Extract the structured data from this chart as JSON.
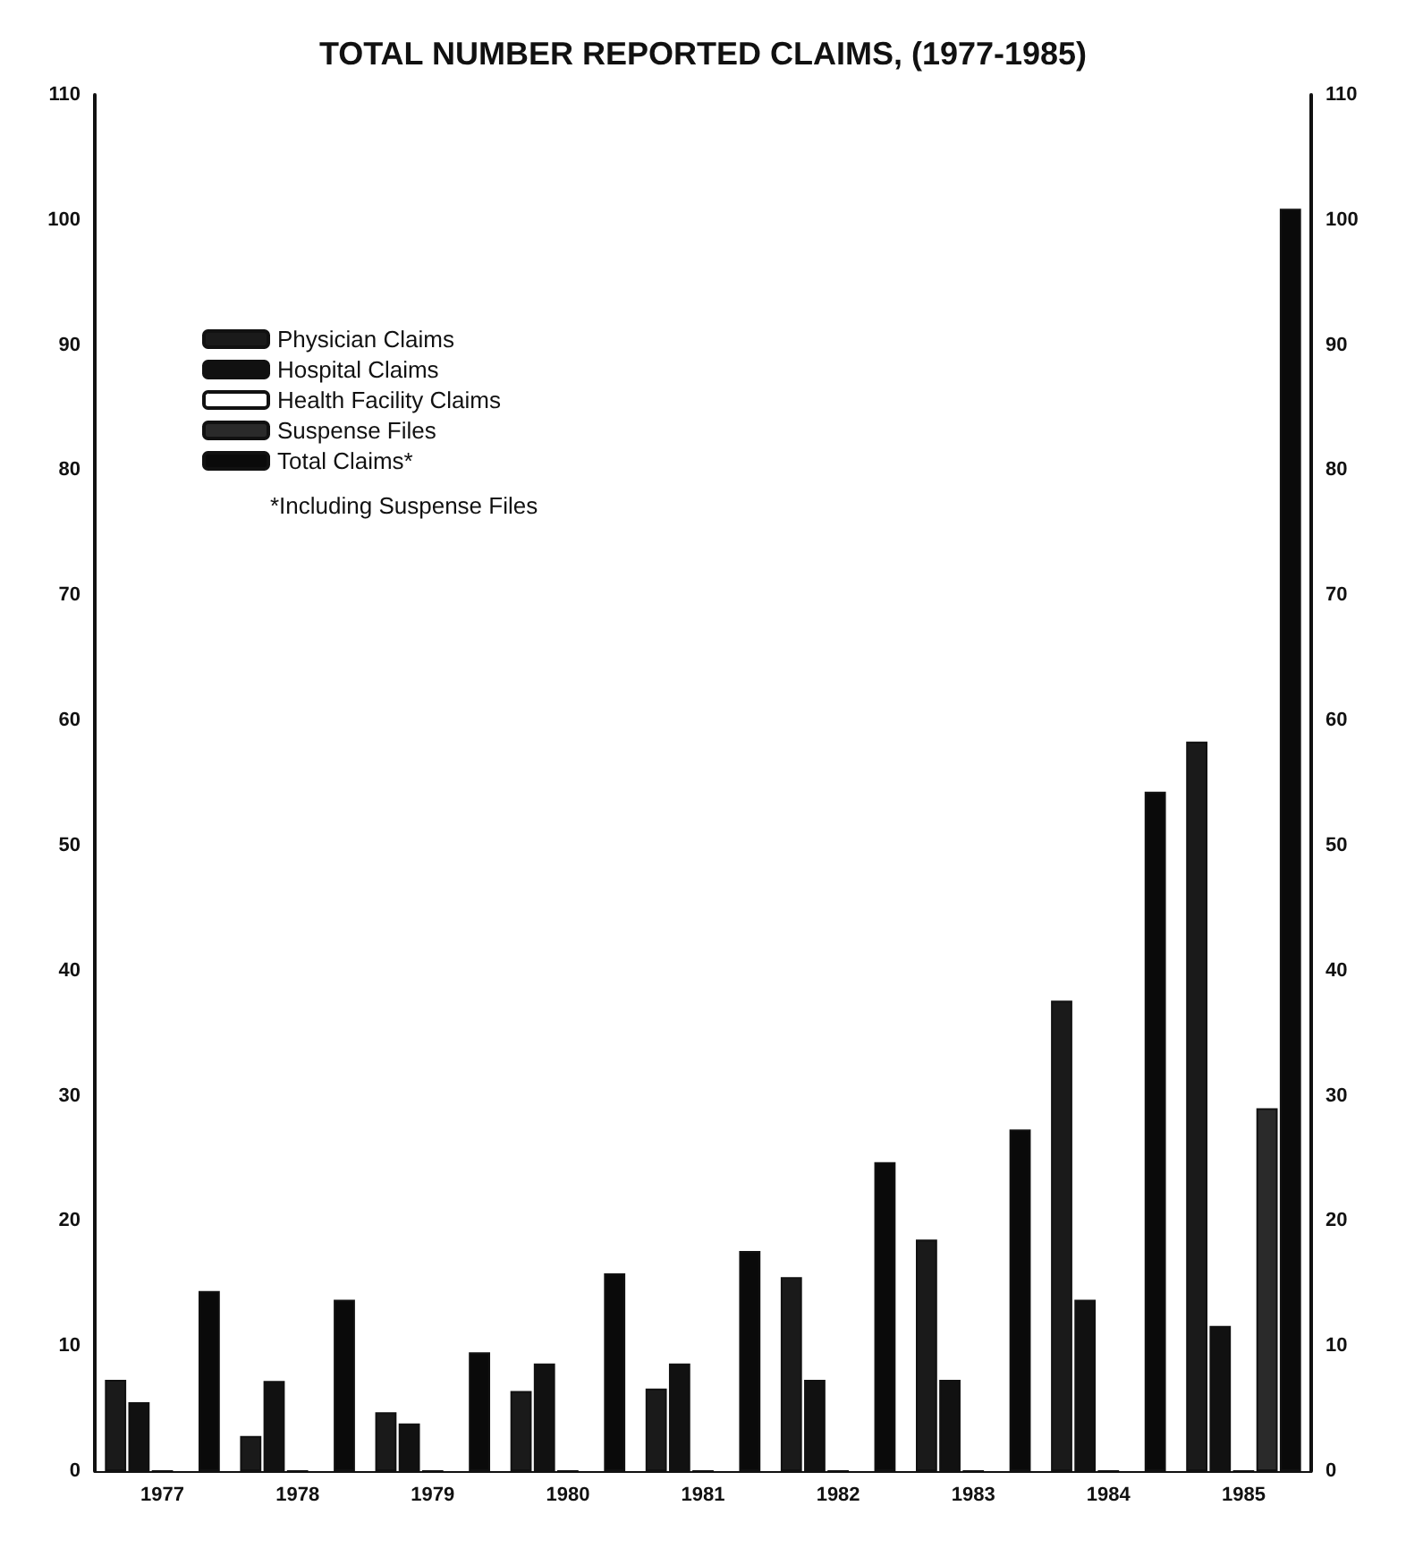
{
  "chart_data": {
    "type": "bar",
    "title": "TOTAL NUMBER REPORTED CLAIMS, (1977-1985)",
    "categories": [
      "1977",
      "1978",
      "1979",
      "1980",
      "1981",
      "1982",
      "1983",
      "1984",
      "1985"
    ],
    "series": [
      {
        "name": "Physician Claims",
        "color": "#1a1a1a",
        "values": [
          7.3,
          2.8,
          4.7,
          6.4,
          6.6,
          15.5,
          18.5,
          37.6,
          58.3
        ]
      },
      {
        "name": "Hospital Claims",
        "color": "#111111",
        "values": [
          5.5,
          7.2,
          3.8,
          8.6,
          8.6,
          7.3,
          7.3,
          13.7,
          11.6
        ]
      },
      {
        "name": "Health Facility Claims",
        "color": "#ffffff",
        "values": [
          0,
          0,
          0,
          0,
          0,
          0,
          0,
          0,
          0
        ]
      },
      {
        "name": "Suspense Files",
        "color": "#2a2a2a",
        "values": [
          null,
          null,
          null,
          null,
          null,
          null,
          null,
          null,
          29
        ]
      },
      {
        "name": "Total Claims*",
        "color": "#0a0a0a",
        "values": [
          14.4,
          13.7,
          9.5,
          15.8,
          17.6,
          24.7,
          27.3,
          54.3,
          100.9
        ]
      }
    ],
    "ylim": [
      0,
      110
    ],
    "yticks": [
      0,
      10,
      20,
      30,
      40,
      50,
      60,
      70,
      80,
      90,
      100,
      110
    ],
    "y2lim": [
      0,
      110
    ],
    "y2ticks": [
      0,
      10,
      20,
      30,
      40,
      50,
      60,
      70,
      80,
      90,
      100,
      110
    ],
    "annotations": [
      "*Including Suspense Files"
    ],
    "legend": "top left",
    "grid": false
  }
}
